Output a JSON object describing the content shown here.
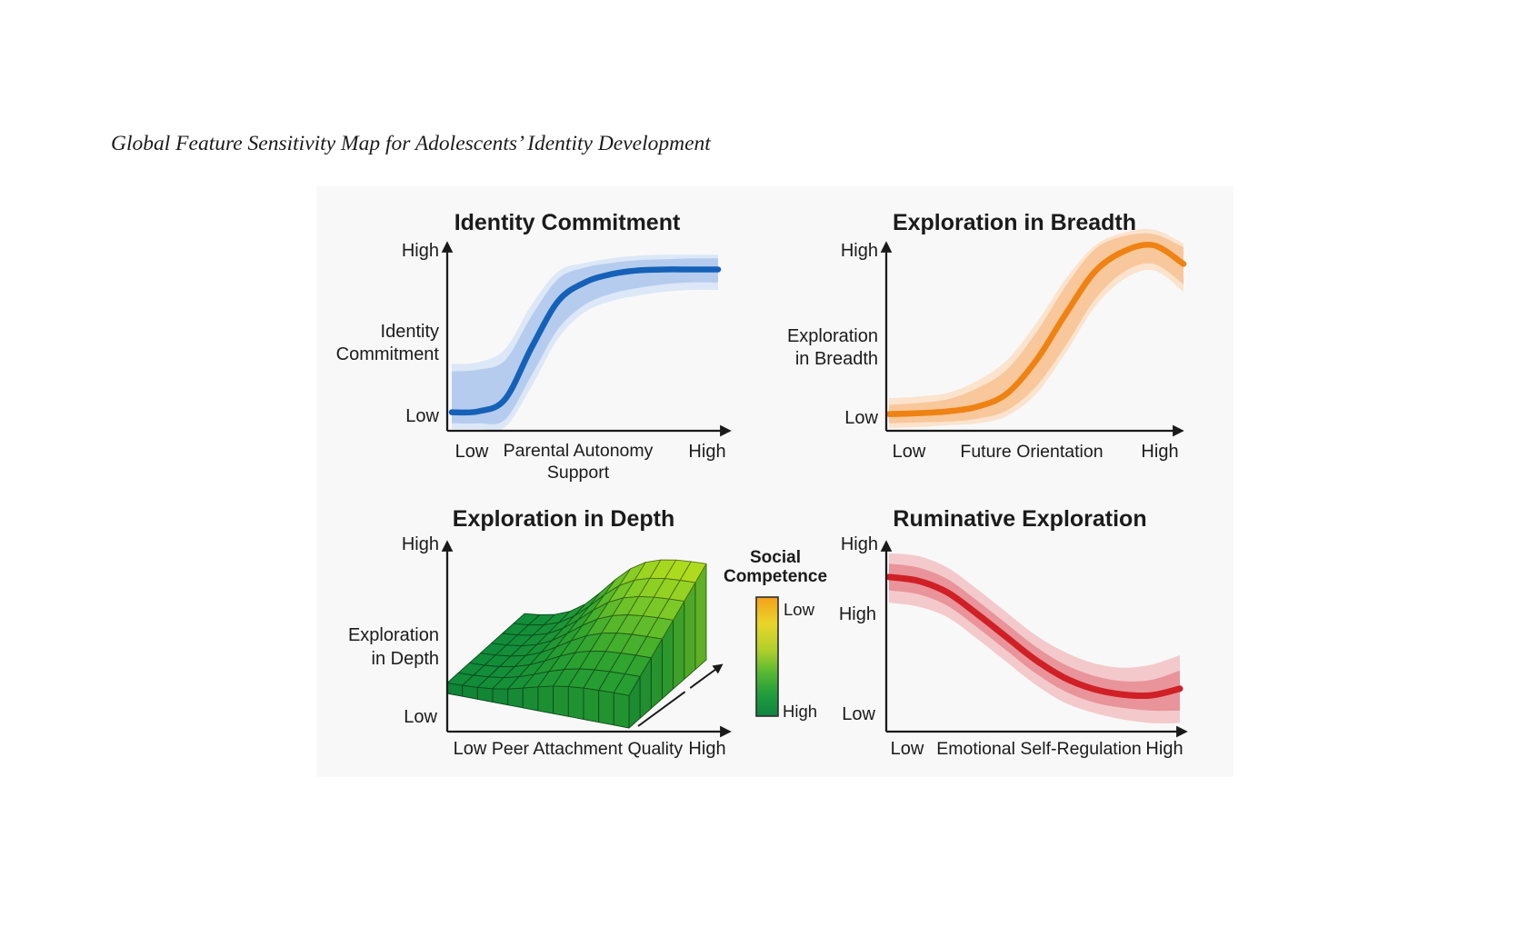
{
  "page_title": "Global Feature Sensitivity Map for Adolescents’ Identity Development",
  "panels": {
    "identity_commitment": {
      "title": "Identity Commitment",
      "y_axis_top": "High",
      "y_axis_label": [
        "Identity",
        "Commitment"
      ],
      "y_axis_bottom": "Low",
      "x_axis_left": "Low",
      "x_axis_label": [
        "Parental Autonomy",
        "Support"
      ],
      "x_axis_right": "High"
    },
    "exploration_in_breadth": {
      "title": "Exploration in Breadth",
      "y_axis_top": "High",
      "y_axis_label": [
        "Exploration",
        "in Breadth"
      ],
      "y_axis_bottom": "Low",
      "x_axis_left": "Low",
      "x_axis_label": [
        "Future Orientation"
      ],
      "x_axis_right": "High"
    },
    "exploration_in_depth": {
      "title": "Exploration in Depth",
      "y_axis_top": "High",
      "y_axis_label": [
        "Exploration",
        "in Depth"
      ],
      "y_axis_bottom": "Low",
      "x_axis_left": "Low",
      "x_axis_label": [
        "Peer Attachment Quality"
      ],
      "x_axis_right": "High"
    },
    "ruminative_exploration": {
      "title": "Ruminative Exploration",
      "y_axis_top": "High",
      "y_axis_label": [
        "High"
      ],
      "y_axis_bottom": "Low",
      "x_axis_left": "Low",
      "x_axis_label": [
        "Emotional Self-Regulation"
      ],
      "x_axis_right": "High"
    }
  },
  "legend": {
    "title": [
      "Social",
      "Competence"
    ],
    "top_label": "Low",
    "bottom_label": "High"
  },
  "colors": {
    "axis": "#1a1a1a",
    "figure_background": "#f8f8f8",
    "legend_gradient": [
      "#F5A01B",
      "#E9D52A",
      "#AFD02B",
      "#5DBA31",
      "#23A03C",
      "#0E8340"
    ]
  },
  "chart_data": [
    {
      "id": "identity_commitment",
      "type": "line",
      "title": "Identity Commitment",
      "xlabel": "Parental Autonomy Support",
      "ylabel": "Identity Commitment",
      "x_range": [
        "Low",
        "High"
      ],
      "y_range": [
        "Low",
        "High"
      ],
      "grid": false,
      "x": [
        0,
        0.1,
        0.2,
        0.3,
        0.4,
        0.5,
        0.6,
        0.7,
        0.8,
        0.9,
        1
      ],
      "mean": [
        0.1,
        0.105,
        0.17,
        0.45,
        0.7,
        0.8,
        0.845,
        0.865,
        0.87,
        0.87,
        0.87
      ],
      "band_inner_high": [
        0.32,
        0.33,
        0.38,
        0.62,
        0.82,
        0.88,
        0.905,
        0.92,
        0.925,
        0.93,
        0.93
      ],
      "band_inner_low": [
        0.04,
        0.04,
        0.06,
        0.3,
        0.55,
        0.68,
        0.74,
        0.77,
        0.79,
        0.8,
        0.8
      ],
      "band_outer_high": [
        0.36,
        0.37,
        0.44,
        0.68,
        0.86,
        0.905,
        0.93,
        0.945,
        0.95,
        0.95,
        0.95
      ],
      "band_outer_low": [
        0.01,
        0.01,
        0.02,
        0.24,
        0.5,
        0.64,
        0.7,
        0.73,
        0.75,
        0.76,
        0.76
      ],
      "color": "#1561B8",
      "band_inner_color": "#B5CCEE",
      "band_outer_color": "#DCE7F7"
    },
    {
      "id": "exploration_in_breadth",
      "type": "line",
      "title": "Exploration in Breadth",
      "xlabel": "Future Orientation",
      "ylabel": "Exploration in Breadth",
      "x_range": [
        "Low",
        "High"
      ],
      "y_range": [
        "Low",
        "High"
      ],
      "grid": false,
      "x": [
        0,
        0.1,
        0.2,
        0.3,
        0.4,
        0.5,
        0.6,
        0.7,
        0.8,
        0.9,
        1
      ],
      "mean": [
        0.09,
        0.095,
        0.105,
        0.13,
        0.2,
        0.38,
        0.63,
        0.86,
        0.97,
        1.0,
        0.9
      ],
      "band_inner_high": [
        0.14,
        0.15,
        0.17,
        0.23,
        0.33,
        0.53,
        0.78,
        0.98,
        1.05,
        1.06,
        0.99
      ],
      "band_inner_low": [
        0.04,
        0.045,
        0.05,
        0.065,
        0.11,
        0.24,
        0.46,
        0.71,
        0.86,
        0.9,
        0.79
      ],
      "band_outer_high": [
        0.175,
        0.185,
        0.205,
        0.27,
        0.38,
        0.58,
        0.82,
        1.0,
        1.07,
        1.085,
        1.01
      ],
      "band_outer_low": [
        0.015,
        0.02,
        0.03,
        0.04,
        0.08,
        0.2,
        0.42,
        0.67,
        0.82,
        0.865,
        0.75
      ],
      "color": "#EE8212",
      "band_inner_color": "#F8C79B",
      "band_outer_color": "#FBE3CE"
    },
    {
      "id": "exploration_in_depth",
      "type": "surface",
      "title": "Exploration in Depth",
      "xlabel": "Peer Attachment Quality",
      "ylabel": "Exploration in Depth",
      "depth_label": "Social Competence",
      "x_range": [
        "Low",
        "High"
      ],
      "y_range": [
        "Low",
        "High"
      ],
      "depth_range": [
        "Low",
        "High"
      ],
      "grid_x_count": 13,
      "grid_depth_count": 8,
      "z_grid_rows_front_to_back": [
        [
          0.104,
          0.108,
          0.116,
          0.131,
          0.157,
          0.194,
          0.235,
          0.27,
          0.294,
          0.307,
          0.314,
          0.318,
          0.319
        ],
        [
          0.105,
          0.111,
          0.123,
          0.144,
          0.181,
          0.232,
          0.29,
          0.339,
          0.372,
          0.391,
          0.401,
          0.406,
          0.409
        ],
        [
          0.107,
          0.114,
          0.129,
          0.157,
          0.204,
          0.271,
          0.345,
          0.408,
          0.451,
          0.476,
          0.488,
          0.495,
          0.498
        ],
        [
          0.108,
          0.118,
          0.136,
          0.17,
          0.227,
          0.309,
          0.4,
          0.477,
          0.53,
          0.56,
          0.576,
          0.583,
          0.587
        ],
        [
          0.11,
          0.121,
          0.142,
          0.182,
          0.25,
          0.347,
          0.454,
          0.546,
          0.608,
          0.644,
          0.662,
          0.672,
          0.676
        ],
        [
          0.111,
          0.124,
          0.149,
          0.195,
          0.274,
          0.385,
          0.509,
          0.615,
          0.687,
          0.728,
          0.749,
          0.76,
          0.766
        ],
        [
          0.113,
          0.127,
          0.155,
          0.208,
          0.297,
          0.424,
          0.564,
          0.684,
          0.766,
          0.812,
          0.837,
          0.849,
          0.855
        ],
        [
          0.114,
          0.131,
          0.162,
          0.221,
          0.32,
          0.462,
          0.619,
          0.753,
          0.845,
          0.896,
          0.924,
          0.937,
          0.944
        ]
      ],
      "colormap_low_to_high": [
        "#108C3A",
        "#2FA42F",
        "#7CC927",
        "#CDE51A"
      ]
    },
    {
      "id": "ruminative_exploration",
      "type": "line",
      "title": "Ruminative Exploration",
      "xlabel": "Emotional Self-Regulation",
      "ylabel": "Ruminative Exploration",
      "x_range": [
        "Low",
        "High"
      ],
      "y_range": [
        "Low",
        "High"
      ],
      "grid": false,
      "x": [
        0,
        0.1,
        0.2,
        0.3,
        0.4,
        0.5,
        0.6,
        0.7,
        0.8,
        0.9,
        1
      ],
      "mean": [
        0.81,
        0.79,
        0.73,
        0.62,
        0.5,
        0.38,
        0.285,
        0.225,
        0.195,
        0.19,
        0.225
      ],
      "band_inner_high": [
        0.88,
        0.86,
        0.8,
        0.69,
        0.57,
        0.45,
        0.355,
        0.295,
        0.265,
        0.27,
        0.32
      ],
      "band_inner_low": [
        0.74,
        0.72,
        0.66,
        0.55,
        0.43,
        0.31,
        0.215,
        0.155,
        0.125,
        0.11,
        0.11
      ],
      "band_outer_high": [
        0.935,
        0.92,
        0.86,
        0.75,
        0.63,
        0.51,
        0.42,
        0.36,
        0.335,
        0.35,
        0.4
      ],
      "band_outer_low": [
        0.675,
        0.655,
        0.6,
        0.49,
        0.37,
        0.25,
        0.155,
        0.1,
        0.065,
        0.045,
        0.045
      ],
      "color": "#CF2026",
      "band_inner_color": "#E8949A",
      "band_outer_color": "#F4C9CC"
    }
  ]
}
